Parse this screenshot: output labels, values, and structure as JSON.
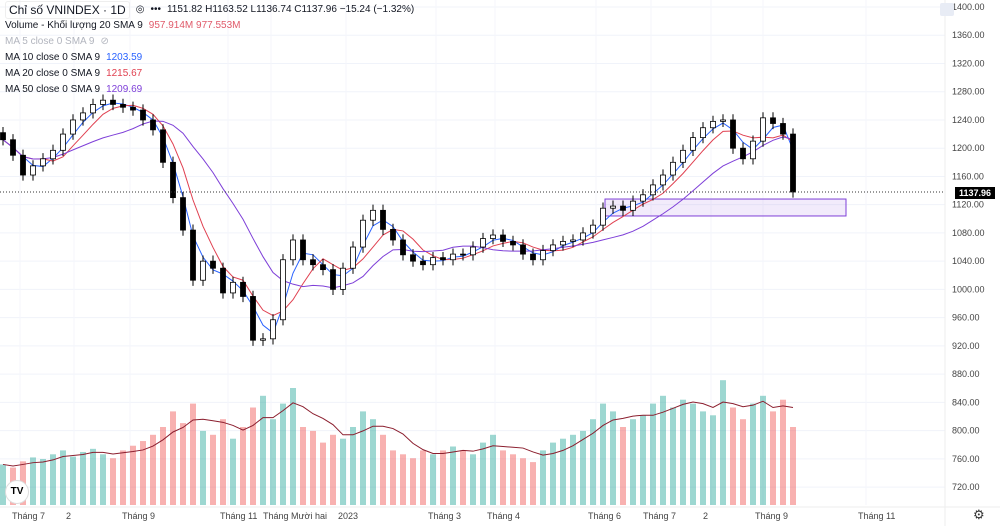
{
  "header": {
    "title": "Chỉ số VNINDEX · 1D",
    "ohlc": "1151.82 H1163.52 L1136.74 C1137.96 −15.24 (−1.32%)"
  },
  "indicators": [
    {
      "label": "Volume - Khối lượng 20 SMA 9",
      "values": "957.914M  977.553M",
      "color": "#e05a6a"
    },
    {
      "label": "MA 5 close 0 SMA 9",
      "values": "",
      "color": "#b2b5be"
    },
    {
      "label": "MA 10 close 0 SMA 9",
      "values": "1203.59",
      "color": "#2962ff"
    },
    {
      "label": "MA 20 close 0 SMA 9",
      "values": "1215.67",
      "color": "#e04050"
    },
    {
      "label": "MA 50 close 0 SMA 9",
      "values": "1209.69",
      "color": "#7e3fd8"
    }
  ],
  "last_price": "1137.96",
  "logo": "TV",
  "chart_data": {
    "type": "candlestick",
    "ylim": [
      700,
      1410
    ],
    "yticks": [
      1400,
      1360,
      1320,
      1280,
      1240,
      1200,
      1160,
      1120,
      1080,
      1040,
      1000,
      960,
      920,
      880,
      840,
      800,
      760,
      720
    ],
    "xticks": [
      "Tháng 7",
      "2",
      "Tháng 9",
      "Tháng 11",
      "Tháng Mười hai",
      "2023",
      "Tháng 3",
      "Tháng 4",
      "Tháng 6",
      "Tháng 7",
      "2",
      "Tháng 9",
      "Tháng 11"
    ],
    "closes": [
      1212,
      1190,
      1162,
      1175,
      1185,
      1197,
      1220,
      1240,
      1250,
      1262,
      1268,
      1262,
      1258,
      1254,
      1240,
      1226,
      1180,
      1130,
      1084,
      1013,
      1040,
      1030,
      995,
      1010,
      990,
      928,
      930,
      957,
      1042,
      1070,
      1042,
      1035,
      1028,
      1000,
      1030,
      1060,
      1098,
      1112,
      1085,
      1070,
      1049,
      1040,
      1035,
      1045,
      1042,
      1050,
      1049,
      1060,
      1072,
      1077,
      1068,
      1063,
      1050,
      1042,
      1055,
      1063,
      1068,
      1070,
      1080,
      1091,
      1115,
      1118,
      1112,
      1125,
      1134,
      1148,
      1162,
      1180,
      1197,
      1215,
      1229,
      1238,
      1240,
      1200,
      1185,
      1210,
      1243,
      1235,
      1220,
      1138
    ],
    "volumes_m": [
      520,
      480,
      560,
      610,
      590,
      650,
      700,
      620,
      680,
      720,
      650,
      600,
      700,
      760,
      820,
      900,
      1000,
      1200,
      1050,
      1300,
      950,
      900,
      1100,
      850,
      1000,
      1250,
      1400,
      1100,
      1300,
      1500,
      1000,
      950,
      800,
      900,
      850,
      1000,
      1200,
      1100,
      900,
      700,
      650,
      600,
      700,
      650,
      700,
      750,
      700,
      650,
      800,
      900,
      700,
      650,
      600,
      550,
      700,
      800,
      850,
      900,
      950,
      1100,
      1300,
      1200,
      1000,
      1100,
      1150,
      1300,
      1400,
      1250,
      1350,
      1300,
      1200,
      1150,
      1600,
      1250,
      1100,
      1300,
      1400,
      1200,
      1350,
      1000
    ],
    "zone": {
      "price_low": 1104,
      "price_high": 1128,
      "color": "#7e3fd8"
    },
    "up_color": "#26a69a",
    "down_color": "#ef5350"
  }
}
